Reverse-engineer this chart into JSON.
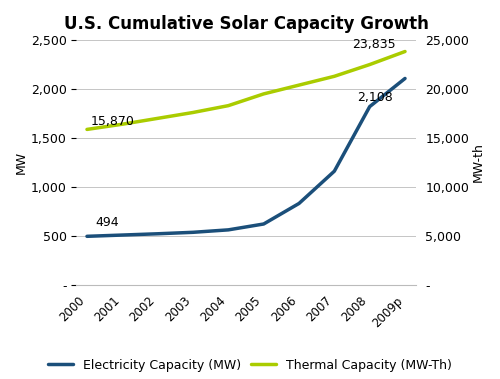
{
  "title": "U.S. Cumulative Solar Capacity Growth",
  "x_labels": [
    "2000",
    "2001",
    "2002",
    "2003",
    "2004",
    "2005",
    "2006",
    "2007",
    "2008",
    "2009p"
  ],
  "electricity_values": [
    494,
    507,
    520,
    535,
    560,
    620,
    830,
    1160,
    1820,
    2108
  ],
  "thermal_values": [
    15870,
    16400,
    17000,
    17600,
    18300,
    19500,
    20400,
    21300,
    22500,
    23835
  ],
  "elec_color": "#1B4F7A",
  "thermal_color": "#AACC00",
  "elec_label": "Electricity Capacity (MW)",
  "thermal_label": "Thermal Capacity (MW-Th)",
  "ylabel_left": "MW",
  "ylabel_right": "MW-th",
  "ylim_left": [
    0,
    2500
  ],
  "ylim_right": [
    0,
    25000
  ],
  "yticks_left": [
    0,
    500,
    1000,
    1500,
    2000,
    2500
  ],
  "yticks_right": [
    0,
    5000,
    10000,
    15000,
    20000,
    25000
  ],
  "ytick_labels_left": [
    "-",
    "500",
    "1,000",
    "1,500",
    "2,000",
    "2,500"
  ],
  "ytick_labels_right": [
    "-",
    "5,000",
    "10,000",
    "15,000",
    "20,000",
    "25,000"
  ],
  "annot_494_xi": 0,
  "annot_494_text": "494",
  "annot_2108_xi": 9,
  "annot_2108_text": "2,108",
  "annot_15870_xi": 1,
  "annot_15870_text": "15,870",
  "annot_23835_xi": 9,
  "annot_23835_text": "23,835",
  "line_width": 2.5,
  "background_color": "#FFFFFF",
  "grid_color": "#BBBBBB",
  "tick_fontsize": 9,
  "ylabel_fontsize": 9,
  "title_fontsize": 12,
  "legend_fontsize": 9
}
